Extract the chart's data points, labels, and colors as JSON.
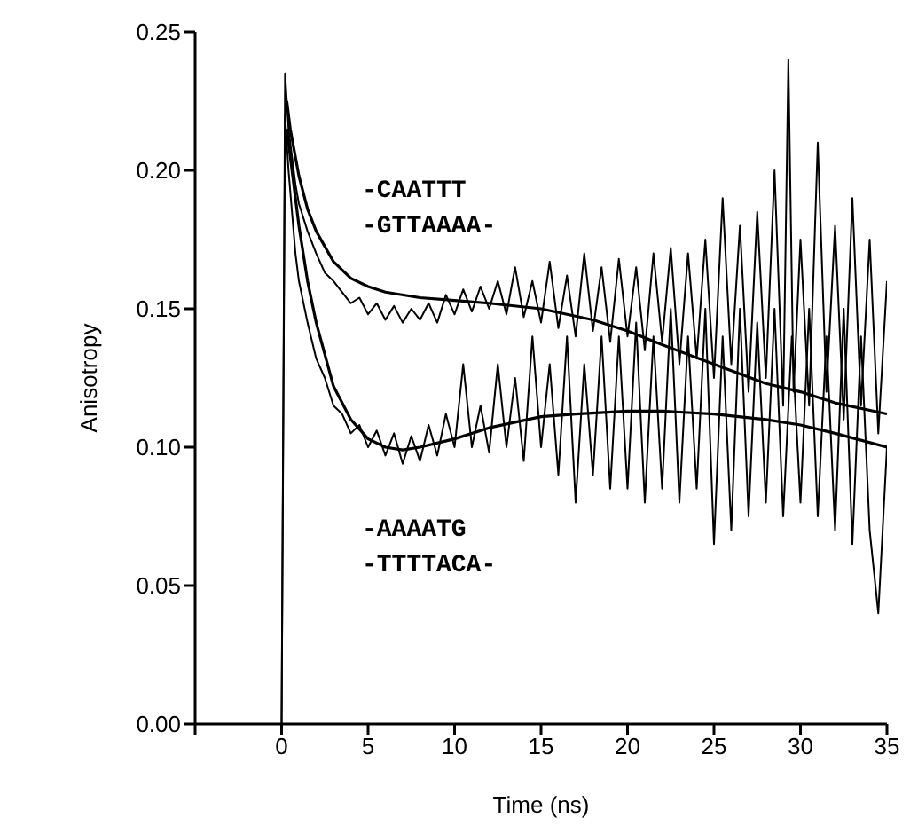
{
  "chart_data": {
    "type": "line",
    "xlabel": "Time (ns)",
    "ylabel": "Anisotropy",
    "xlim": [
      -5,
      35
    ],
    "xticks": [
      {
        "value": -5,
        "label": null
      },
      0,
      5,
      10,
      15,
      20,
      25,
      30,
      35
    ],
    "ylim": [
      0,
      0.25
    ],
    "yticks": [
      {
        "value": 0,
        "label": "0.00"
      },
      {
        "value": 0.05,
        "label": "0.05"
      },
      {
        "value": 0.1,
        "label": "0.10"
      },
      {
        "value": 0.15,
        "label": "0.15"
      },
      {
        "value": 0.2,
        "label": "0.20"
      },
      {
        "value": 0.25,
        "label": "0.25"
      }
    ],
    "line_style": "solid",
    "annotations": [
      "-CAATTT",
      "-GTTAAAA-",
      "-AAAATG",
      "-TTTTACA-"
    ],
    "series": [
      {
        "color": "#000000",
        "x": [
          0,
          0.2,
          0.4,
          0.6,
          0.8,
          1,
          1.5,
          2,
          2.5,
          3,
          3.5,
          4,
          4.5,
          5,
          5.5,
          6,
          6.5,
          7,
          7.5,
          8,
          8.5,
          9,
          9.5,
          10,
          10.5,
          11,
          11.5,
          12,
          12.5,
          13,
          13.5,
          14,
          14.5,
          15,
          15.5,
          16,
          16.5,
          17,
          17.5,
          18,
          18.5,
          19,
          19.5,
          20,
          20.5,
          21,
          21.5,
          22,
          22.5,
          23,
          23.5,
          24,
          24.5,
          25,
          25.5,
          26,
          26.5,
          27,
          27.5,
          28,
          28.5,
          29,
          29.3,
          29.6,
          30,
          30.5,
          31,
          31.5,
          32,
          32.5,
          33,
          33.5,
          34,
          34.5,
          35
        ],
        "values": [
          0,
          0.235,
          0.215,
          0.205,
          0.195,
          0.188,
          0.178,
          0.17,
          0.163,
          0.16,
          0.156,
          0.152,
          0.154,
          0.148,
          0.152,
          0.146,
          0.151,
          0.145,
          0.15,
          0.146,
          0.152,
          0.145,
          0.155,
          0.148,
          0.157,
          0.149,
          0.158,
          0.15,
          0.16,
          0.148,
          0.165,
          0.147,
          0.16,
          0.145,
          0.167,
          0.143,
          0.162,
          0.14,
          0.17,
          0.142,
          0.165,
          0.138,
          0.168,
          0.14,
          0.165,
          0.135,
          0.17,
          0.138,
          0.172,
          0.13,
          0.17,
          0.132,
          0.175,
          0.125,
          0.19,
          0.13,
          0.18,
          0.12,
          0.185,
          0.125,
          0.2,
          0.115,
          0.24,
          0.12,
          0.175,
          0.115,
          0.21,
          0.12,
          0.18,
          0.11,
          0.19,
          0.115,
          0.175,
          0.105,
          0.16
        ]
      },
      {
        "color": "#000000",
        "x": [
          0,
          0.2,
          0.4,
          0.6,
          0.8,
          1,
          1.5,
          2,
          2.5,
          3,
          3.5,
          4,
          4.5,
          5,
          5.5,
          6,
          6.5,
          7,
          7.5,
          8,
          8.5,
          9,
          9.5,
          10,
          10.5,
          11,
          11.5,
          12,
          12.5,
          13,
          13.5,
          14,
          14.5,
          15,
          15.5,
          16,
          16.5,
          17,
          17.5,
          18,
          18.5,
          19,
          19.5,
          20,
          20.5,
          21,
          21.5,
          22,
          22.5,
          23,
          23.5,
          24,
          24.5,
          25,
          25.5,
          26,
          26.5,
          27,
          27.5,
          28,
          28.5,
          29,
          29.5,
          30,
          30.5,
          31,
          31.5,
          32,
          32.5,
          33,
          33.5,
          34,
          34.5,
          35
        ],
        "values": [
          0,
          0.22,
          0.2,
          0.185,
          0.17,
          0.16,
          0.145,
          0.132,
          0.125,
          0.115,
          0.112,
          0.105,
          0.108,
          0.1,
          0.106,
          0.097,
          0.105,
          0.094,
          0.104,
          0.095,
          0.108,
          0.097,
          0.112,
          0.1,
          0.13,
          0.1,
          0.115,
          0.098,
          0.13,
          0.1,
          0.125,
          0.095,
          0.14,
          0.1,
          0.13,
          0.09,
          0.14,
          0.08,
          0.13,
          0.09,
          0.14,
          0.085,
          0.14,
          0.085,
          0.145,
          0.08,
          0.14,
          0.085,
          0.15,
          0.08,
          0.14,
          0.085,
          0.15,
          0.065,
          0.14,
          0.07,
          0.15,
          0.075,
          0.145,
          0.08,
          0.15,
          0.075,
          0.14,
          0.08,
          0.15,
          0.075,
          0.14,
          0.07,
          0.15,
          0.065,
          0.14,
          0.07,
          0.04,
          0.1
        ]
      },
      {
        "color": "#000000",
        "x": [
          0.3,
          0.5,
          1,
          1.5,
          2,
          3,
          4,
          5,
          6,
          8,
          10,
          12,
          15,
          18,
          20,
          22,
          25,
          28,
          30,
          32,
          35
        ],
        "values": [
          0.225,
          0.215,
          0.198,
          0.186,
          0.178,
          0.167,
          0.161,
          0.158,
          0.156,
          0.154,
          0.153,
          0.152,
          0.15,
          0.146,
          0.142,
          0.137,
          0.13,
          0.123,
          0.12,
          0.116,
          0.112
        ]
      },
      {
        "color": "#000000",
        "x": [
          0.3,
          0.5,
          1,
          1.5,
          2,
          3,
          4,
          5,
          6,
          7,
          8,
          10,
          12,
          15,
          17,
          20,
          22,
          25,
          28,
          30,
          32,
          35
        ],
        "values": [
          0.215,
          0.205,
          0.18,
          0.16,
          0.145,
          0.122,
          0.11,
          0.103,
          0.1,
          0.099,
          0.1,
          0.103,
          0.107,
          0.111,
          0.112,
          0.113,
          0.113,
          0.112,
          0.11,
          0.108,
          0.105,
          0.1
        ]
      }
    ]
  }
}
